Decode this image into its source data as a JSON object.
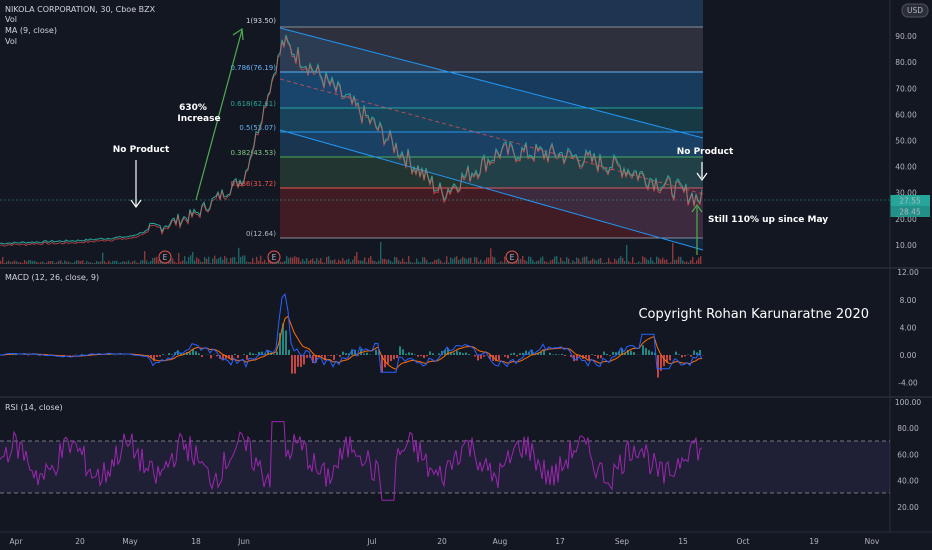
{
  "header": {
    "symbol": "NIKOLA CORPORATION, 30, Cboe BZX",
    "legend_vol": "Vol",
    "legend_ma": "MA (9, close)",
    "legend_vol2": "Vol",
    "currency": "USD",
    "currency_caret": "⌄"
  },
  "macd_legend": "MACD (12, 26, close, 9)",
  "rsi_legend": "RSI (14, close)",
  "copyright": "Copyright Rohan Karunaratne 2020",
  "annotations": {
    "no_product_left": "No Product",
    "no_product_right": "No Product",
    "increase_line1": "630%",
    "increase_line2": "Increase",
    "still_up": "Still 110% up since May",
    "earnings_marker": "E"
  },
  "price_labels": {
    "last": "27.55",
    "other": "28.45"
  },
  "colors": {
    "background": "#131722",
    "up": "#26a69a",
    "down": "#ef5350",
    "macd_line": "#2962ff",
    "signal_line": "#ff6d00",
    "rsi_line": "#9c27b0",
    "channel": "#2196f3",
    "annotation_arrow": "#ffffff",
    "growth_arrow": "#4caf50"
  },
  "chart_data": [
    {
      "type": "line",
      "title": "NIKOLA CORPORATION, 30, Cboe BZX",
      "x_tick_labels": [
        "Apr",
        "20",
        "May",
        "18",
        "Jun",
        "Jul",
        "20",
        "Aug",
        "17",
        "Sep",
        "15",
        "Oct",
        "19",
        "Nov"
      ],
      "y_tick_labels": [
        "10.00",
        "20.00",
        "30.00",
        "40.00",
        "50.00",
        "60.00",
        "70.00",
        "80.00",
        "90.00"
      ],
      "ylim": [
        5,
        95
      ],
      "series": [
        {
          "x": [
            "Apr",
            "20",
            "May",
            "18",
            "Jun",
            "Jul",
            "20",
            "Aug",
            "17",
            "Sep",
            "15"
          ],
          "values": [
            10.6,
            11.7,
            13.2,
            22,
            36,
            57,
            30,
            46,
            45,
            40,
            27.55
          ]
        }
      ],
      "fibonacci_levels": [
        {
          "label": "1(93.50)",
          "value": 93.5
        },
        {
          "label": "0.786(76.19)",
          "value": 76.19
        },
        {
          "label": "0.618(62.61)",
          "value": 62.61
        },
        {
          "label": "0.5(53.07)",
          "value": 53.07
        },
        {
          "label": "0.382(43.53)",
          "value": 43.53
        },
        {
          "label": "0.236(31.72)",
          "value": 31.72
        },
        {
          "label": "0(12.64)",
          "value": 12.64
        }
      ]
    },
    {
      "type": "line",
      "title": "MACD (12, 26, close, 9)",
      "y_tick_labels": [
        "12.00",
        "8.00",
        "4.00",
        "0.00",
        "-4.00"
      ],
      "ylim": [
        -4,
        12
      ]
    },
    {
      "type": "line",
      "title": "RSI (14, close)",
      "y_tick_labels": [
        "100.00",
        "80.00",
        "60.00",
        "40.00",
        "20.00"
      ],
      "ylim": [
        0,
        100
      ],
      "bands": [
        70,
        30
      ]
    }
  ]
}
